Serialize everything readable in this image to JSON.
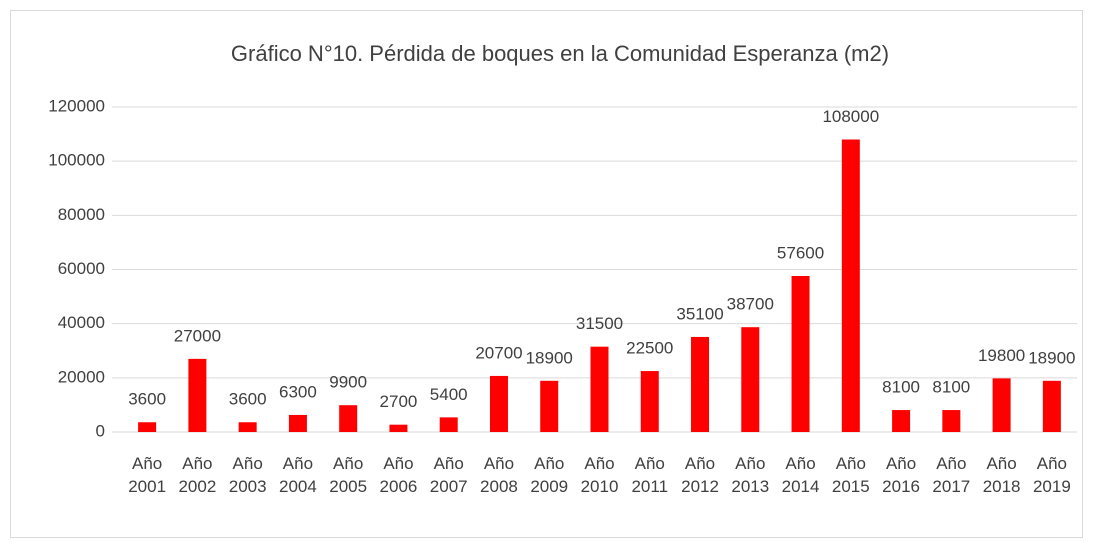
{
  "chart_data": {
    "type": "bar",
    "title": "Gráfico N°10. Pérdida de boques en la Comunidad Esperanza (m2)",
    "categories": [
      "Año 2001",
      "Año 2002",
      "Año 2003",
      "Año 2004",
      "Año 2005",
      "Año 2006",
      "Año 2007",
      "Año 2008",
      "Año 2009",
      "Año 2010",
      "Año 2011",
      "Año 2012",
      "Año 2013",
      "Año 2014",
      "Año 2015",
      "Año 2016",
      "Año 2017",
      "Año 2018",
      "Año 2019"
    ],
    "values": [
      3600,
      27000,
      3600,
      6300,
      9900,
      2700,
      5400,
      20700,
      18900,
      31500,
      22500,
      35100,
      38700,
      57600,
      108000,
      8100,
      8100,
      19800,
      18900
    ],
    "color": "#ff0000",
    "ylim": [
      0,
      120000
    ],
    "yticks": [
      0,
      20000,
      40000,
      60000,
      80000,
      100000,
      120000
    ],
    "grid": true
  }
}
